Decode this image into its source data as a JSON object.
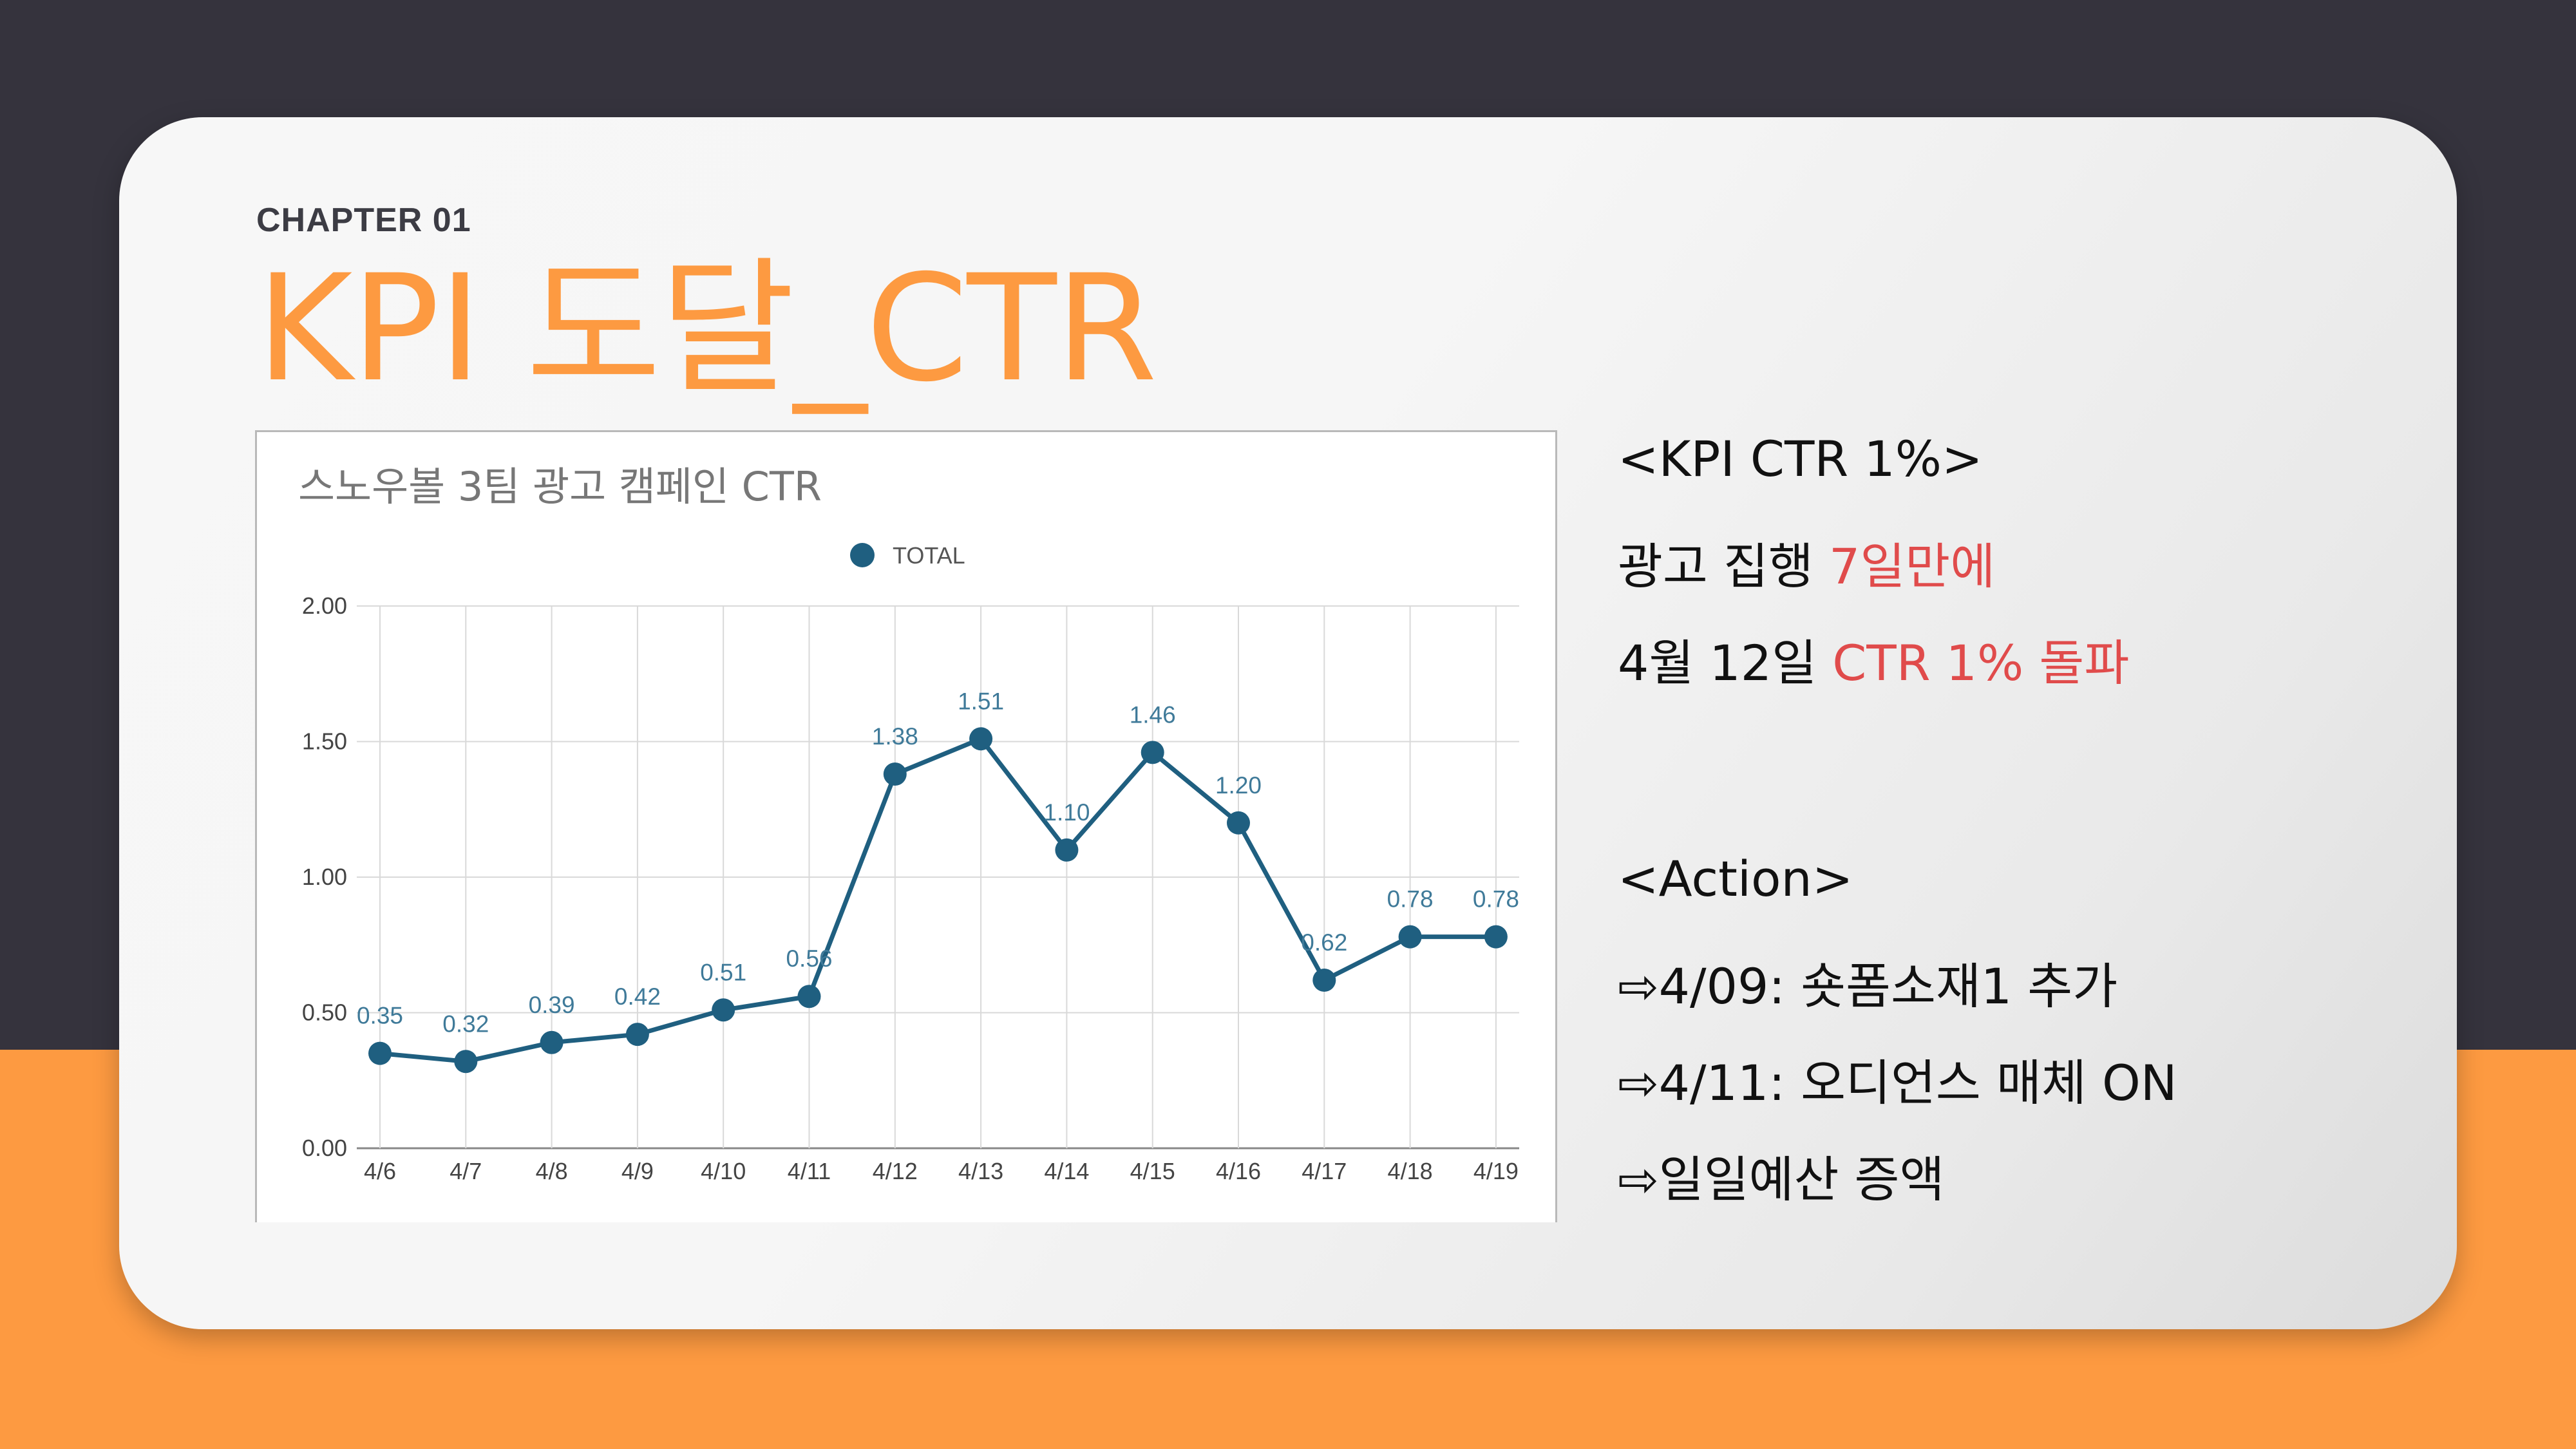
{
  "slide": {
    "chapter": "CHAPTER 01",
    "title": "KPI 도달_CTR"
  },
  "chart_data": {
    "type": "line",
    "title": "스노우볼 3팀 광고 캠페인 CTR",
    "legend": "TOTAL",
    "legend_position": "top-center",
    "grid": true,
    "categories": [
      "4/6",
      "4/7",
      "4/8",
      "4/9",
      "4/10",
      "4/11",
      "4/12",
      "4/13",
      "4/14",
      "4/15",
      "4/16",
      "4/17",
      "4/18",
      "4/19"
    ],
    "series": [
      {
        "name": "TOTAL",
        "values": [
          0.35,
          0.32,
          0.39,
          0.42,
          0.51,
          0.56,
          1.38,
          1.51,
          1.1,
          1.46,
          1.2,
          0.62,
          0.78,
          0.78
        ]
      }
    ],
    "data_labels": [
      "0.35",
      "0.32",
      "0.39",
      "0.42",
      "0.51",
      "0.56",
      "1.38",
      "1.51",
      "1.10",
      "1.46",
      "1.20",
      "0.62",
      "0.78",
      "0.78"
    ],
    "yticks": [
      "0.00",
      "0.50",
      "1.00",
      "1.50",
      "2.00"
    ],
    "ylim": [
      0,
      2.0
    ],
    "colors": {
      "line": "#1f5f80",
      "label": "#3f7a99",
      "grid": "#d9d9d9",
      "title": "#777777"
    }
  },
  "notes": {
    "kpi_heading": "<KPI CTR 1%>",
    "line1_a": "광고 집행 ",
    "line1_b": "7일만에",
    "line2_a": "4월 12일 ",
    "line2_b": "CTR 1% 돌파",
    "action_heading": "<Action>",
    "actions": [
      "⇨4/09: 숏폼소재1 추가",
      "⇨4/11: 오디언스 매체 ON",
      "⇨일일예산 증액"
    ]
  },
  "colors": {
    "accent": "#fd9a41",
    "dark": "#35333d",
    "highlight": "#e04b4b"
  }
}
